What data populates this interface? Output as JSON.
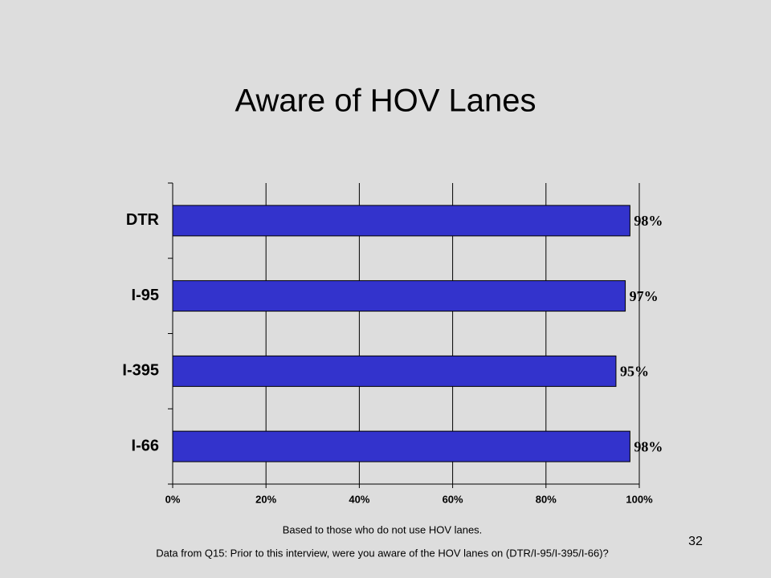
{
  "chart_data": {
    "type": "bar",
    "orientation": "horizontal",
    "title": "Aware of HOV Lanes",
    "categories": [
      "DTR",
      "I-95",
      "I-395",
      "I-66"
    ],
    "values": [
      98,
      97,
      95,
      98
    ],
    "value_labels": [
      "98%",
      "97%",
      "95%",
      "98%"
    ],
    "color": "#3333cc",
    "xlim": [
      0,
      100
    ],
    "xticks": [
      {
        "value": 0,
        "label": "0%"
      },
      {
        "value": 20,
        "label": "20%"
      },
      {
        "value": 40,
        "label": "40%"
      },
      {
        "value": 60,
        "label": "60%"
      },
      {
        "value": 80,
        "label": "80%"
      },
      {
        "value": 100,
        "label": "100%"
      }
    ],
    "grid": true
  },
  "footnotes": [
    "Based to those who do not use HOV lanes.",
    "Data from Q15:  Prior to this interview, were you aware of the HOV lanes on (DTR/I-95/I-395/I-66)?"
  ],
  "page_number": "32"
}
